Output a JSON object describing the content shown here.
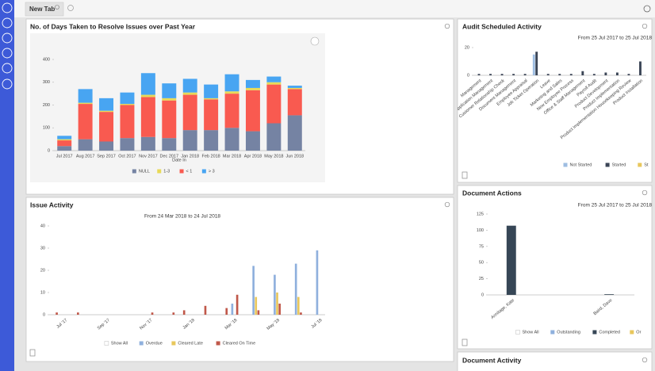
{
  "tab": "New Tab",
  "empty_panel_title": "Document Activity",
  "chart_data": [
    {
      "type": "bar",
      "stacked": true,
      "title": "No. of Days Taken to Resolve Issues over Past Year",
      "xlabel": "Date In",
      "categories": [
        "Jul 2017",
        "Aug 2017",
        "Sep 2017",
        "Oct 2017",
        "Nov 2017",
        "Dec 2017",
        "Jan 2018",
        "Feb 2018",
        "Mar 2018",
        "Apr 2018",
        "May 2018",
        "Jun 2018"
      ],
      "series": [
        {
          "name": "NULL",
          "color": "#7583a3",
          "values": [
            20,
            50,
            40,
            55,
            60,
            55,
            90,
            90,
            100,
            85,
            120,
            155
          ]
        },
        {
          "name": "1-3",
          "color": "#e8d957",
          "values": [
            5,
            5,
            5,
            5,
            10,
            10,
            10,
            5,
            10,
            10,
            10,
            5
          ]
        },
        {
          "name": "< 1",
          "color": "#f95a50",
          "values": [
            25,
            155,
            130,
            145,
            175,
            165,
            155,
            135,
            150,
            180,
            170,
            115
          ]
        },
        {
          "name": "> 3",
          "color": "#48a5f2",
          "values": [
            15,
            60,
            55,
            50,
            95,
            65,
            60,
            60,
            75,
            35,
            25,
            10
          ]
        }
      ],
      "ylim": [
        0,
        400
      ],
      "yticks": [
        0,
        100,
        200,
        300,
        400
      ],
      "grid": false
    },
    {
      "type": "bar",
      "stacked": false,
      "title": "Issue Activity",
      "subtitle": "From 24 Mar 2018 to 24 Jul 2018",
      "legend_show_all": "Show All",
      "categories": [
        null,
        "Jul '17",
        null,
        null,
        null,
        "Sep '17",
        null,
        null,
        null,
        "Nov '17",
        null,
        null,
        null,
        "Jan '18",
        null,
        null,
        null,
        "Mar '18",
        null,
        null,
        null,
        "May '18",
        null,
        null,
        null,
        "Jul '18"
      ],
      "series": [
        {
          "name": "Overdue",
          "color": "#8fb0dd",
          "values": [
            null,
            null,
            null,
            null,
            null,
            null,
            null,
            null,
            null,
            null,
            null,
            null,
            null,
            null,
            null,
            null,
            null,
            5,
            null,
            22,
            null,
            18,
            null,
            23,
            null,
            29
          ]
        },
        {
          "name": "Cleared Late",
          "color": "#e8c75c",
          "values": [
            null,
            null,
            null,
            null,
            null,
            null,
            null,
            null,
            null,
            null,
            null,
            null,
            null,
            null,
            null,
            null,
            null,
            null,
            null,
            8,
            null,
            10,
            null,
            8,
            null,
            null
          ]
        },
        {
          "name": "Cleared On Time",
          "color": "#c0584a",
          "values": [
            1,
            null,
            1,
            null,
            null,
            null,
            null,
            null,
            null,
            1,
            null,
            1,
            2,
            null,
            4,
            null,
            3,
            9,
            null,
            2,
            null,
            5,
            null,
            1,
            null,
            null
          ]
        }
      ],
      "ylim": [
        0,
        40
      ],
      "yticks": [
        0,
        10,
        20,
        30,
        40
      ],
      "grid": false
    },
    {
      "type": "bar",
      "stacked": false,
      "title": "Audit Scheduled Activity",
      "subtitle": "From 25 Jul 2017 to 25 Jul 2018",
      "categories": [
        "Management",
        "Application Management",
        "Customer Relationship Check",
        "Document Management",
        "Employee Appraisal",
        "Job Ticket Operation",
        "Leave",
        "Marketing and Sales",
        "New Employee Process",
        "Office & Staff Management",
        "Payroll Audit",
        "Product Development",
        "Product Implementation",
        "Product Implementation Housekeeping Review",
        "Product Installation"
      ],
      "series": [
        {
          "name": "Not Started",
          "color": "#9ebde2",
          "values": [
            null,
            null,
            null,
            null,
            null,
            15,
            null,
            null,
            null,
            null,
            null,
            null,
            null,
            null,
            null
          ]
        },
        {
          "name": "Started",
          "color": "#3b4556",
          "values": [
            1,
            1,
            1,
            1,
            1,
            17,
            1,
            1,
            1,
            3,
            1,
            2,
            2,
            1,
            10
          ]
        },
        {
          "name": "St",
          "color": "#e8c75c",
          "values": [
            null,
            null,
            null,
            null,
            null,
            null,
            null,
            null,
            null,
            null,
            null,
            null,
            null,
            null,
            null
          ]
        }
      ],
      "ylim": [
        0,
        20
      ],
      "yticks": [
        0,
        20
      ],
      "grid": false
    },
    {
      "type": "bar",
      "stacked": false,
      "title": "Document Actions",
      "subtitle": "From 25 Jul 2017 to 25 Jul 2018",
      "legend_show_all": "Show All",
      "categories": [
        "Armitage, Kate",
        null,
        "Baird, Dave"
      ],
      "series": [
        {
          "name": "Outstanding",
          "color": "#8fb0dd",
          "values": [
            null,
            null,
            null
          ]
        },
        {
          "name": "Completed",
          "color": "#364656",
          "values": [
            107,
            null,
            1
          ]
        },
        {
          "name": "Or",
          "color": "#e8c75c",
          "values": [
            null,
            null,
            null
          ]
        }
      ],
      "ylim": [
        0,
        125
      ],
      "yticks": [
        0,
        25,
        50,
        75,
        100,
        125
      ],
      "grid": false
    }
  ]
}
